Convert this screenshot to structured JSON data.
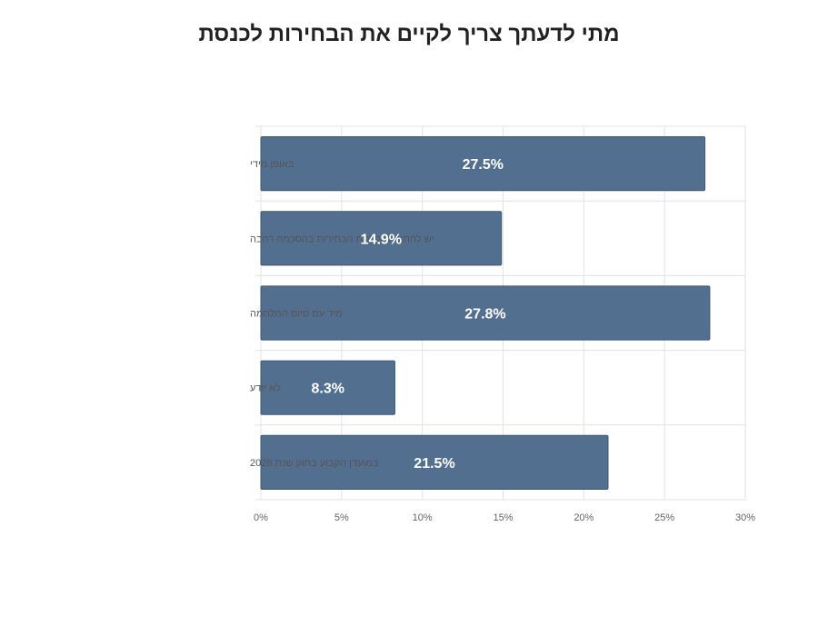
{
  "chart_data": {
    "type": "bar",
    "orientation": "horizontal",
    "title": "מתי לדעתך צריך לקיים את הבחירות לכנסת",
    "categories": [
      "באופן מידי",
      "יש לחתור להקדמת הבחירות בהסכמה רחבה",
      "מיד עם סיום המלחמה",
      "לא יודע",
      "במועדן הקבוע בחוק שנת 2026"
    ],
    "values": [
      27.5,
      14.9,
      27.8,
      8.3,
      21.5
    ],
    "data_labels": [
      "27.5%",
      "14.9%",
      "27.8%",
      "8.3%",
      "21.5%"
    ],
    "xlim": [
      0,
      30
    ],
    "x_ticks": [
      0,
      5,
      10,
      15,
      20,
      25,
      30
    ],
    "x_tick_labels": [
      "0%",
      "5%",
      "10%",
      "15%",
      "20%",
      "25%",
      "30%"
    ],
    "xlabel": "",
    "ylabel": "",
    "grid": true,
    "legend": "none",
    "bar_color": "#536f90",
    "bar_border_color": "#3f5670",
    "grid_color": "#e3e3e3"
  }
}
